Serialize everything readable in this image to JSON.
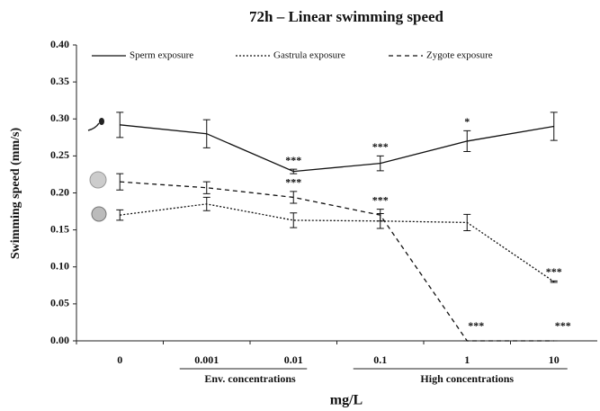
{
  "chart_data": {
    "type": "line",
    "title": "72h – Linear swimming speed",
    "x_label": "mg/L",
    "y_label": "Swimming speed (mm/s)",
    "categories": [
      "0",
      "0.001",
      "0.01",
      "0.1",
      "1",
      "10"
    ],
    "ylim": [
      0,
      0.4
    ],
    "yticks": [
      {
        "value": 0,
        "label": "0.00"
      },
      {
        "value": 0.05,
        "label": "0.05"
      },
      {
        "value": 0.1,
        "label": "0.10"
      },
      {
        "value": 0.15,
        "label": "0.15"
      },
      {
        "value": 0.2,
        "label": "0.20"
      },
      {
        "value": 0.25,
        "label": "0.25"
      },
      {
        "value": 0.3,
        "label": "0.30"
      },
      {
        "value": 0.35,
        "label": "0.35"
      },
      {
        "value": 0.4,
        "label": "0.40"
      }
    ],
    "legend": "top",
    "series": [
      {
        "name": "Sperm exposure",
        "color": "#111111",
        "style": "solid",
        "values": [
          0.292,
          0.28,
          0.229,
          0.24,
          0.27,
          0.29
        ],
        "errors": [
          0.017,
          0.019,
          0.003,
          0.01,
          0.014,
          0.019
        ],
        "significance": [
          null,
          null,
          "***",
          "***",
          "*",
          null
        ]
      },
      {
        "name": "Gastrula exposure",
        "color": "#111111",
        "style": "dotted",
        "values": [
          0.17,
          0.185,
          0.163,
          0.162,
          0.16,
          0.08
        ],
        "errors": [
          0.007,
          0.009,
          0.01,
          0.01,
          0.011,
          0.001
        ],
        "significance": [
          null,
          null,
          null,
          null,
          null,
          "***"
        ]
      },
      {
        "name": "Zygote exposure",
        "color": "#111111",
        "style": "dashed",
        "values": [
          0.215,
          0.207,
          0.194,
          0.17,
          0,
          0
        ],
        "errors": [
          0.011,
          0.008,
          0.008,
          0.008,
          0,
          0
        ],
        "significance": [
          null,
          null,
          "***",
          "***",
          "***",
          "***"
        ]
      }
    ],
    "groups": [
      {
        "label": "Env. concentrations",
        "from": "0.001",
        "to": "0.01"
      },
      {
        "label": "High concentrations",
        "from": "0.1",
        "to": "10"
      }
    ]
  }
}
